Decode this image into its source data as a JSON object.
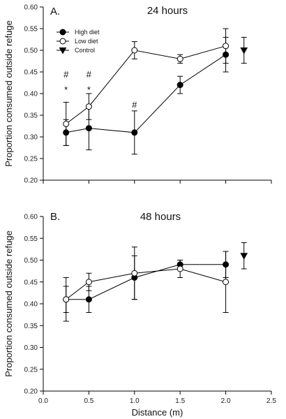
{
  "chart_data": [
    {
      "type": "line",
      "panel": "A.",
      "title": "24 hours",
      "xlabel": "",
      "ylabel": "Proportion consumed outside refuge",
      "xlim": [
        0,
        2.5
      ],
      "ylim": [
        0.2,
        0.6
      ],
      "x_ticks": [
        "0.0",
        "0.5",
        "1.0",
        "1.5",
        "2.0",
        "2.5"
      ],
      "y_ticks": [
        "0.20",
        "0.25",
        "0.30",
        "0.35",
        "0.40",
        "0.45",
        "0.50",
        "0.55",
        "0.60"
      ],
      "show_x_tick_labels": false,
      "legend_placement": "top-left",
      "series": [
        {
          "name": "High diet",
          "marker": "filled-circle",
          "connected": true,
          "x": [
            0.25,
            0.5,
            1.0,
            1.5,
            2.0
          ],
          "y": [
            0.31,
            0.32,
            0.31,
            0.42,
            0.49
          ],
          "err": [
            0.03,
            0.05,
            0.05,
            0.02,
            0.04
          ]
        },
        {
          "name": "Low diet",
          "marker": "open-circle",
          "connected": true,
          "x": [
            0.25,
            0.5,
            1.0,
            1.5,
            2.0
          ],
          "y": [
            0.33,
            0.37,
            0.5,
            0.48,
            0.51
          ],
          "err": [
            0.05,
            0.03,
            0.02,
            0.01,
            0.04
          ]
        },
        {
          "name": "Control",
          "marker": "filled-triangle-down",
          "connected": false,
          "x": [
            2.2
          ],
          "y": [
            0.5
          ],
          "err": [
            0.03
          ]
        }
      ],
      "annotations": [
        {
          "text": "#",
          "x": 0.25,
          "y": 0.445
        },
        {
          "text": "#",
          "x": 0.5,
          "y": 0.445
        },
        {
          "text": "*",
          "x": 0.25,
          "y": 0.41
        },
        {
          "text": "*",
          "x": 0.5,
          "y": 0.41
        },
        {
          "text": "#",
          "x": 1.0,
          "y": 0.375
        }
      ]
    },
    {
      "type": "line",
      "panel": "B.",
      "title": "48 hours",
      "xlabel": "Distance (m)",
      "ylabel": "Proportion consumed outside refuge",
      "xlim": [
        0,
        2.5
      ],
      "ylim": [
        0.2,
        0.6
      ],
      "x_ticks": [
        "0.0",
        "0.5",
        "1.0",
        "1.5",
        "2.0",
        "2.5"
      ],
      "y_ticks": [
        "0.20",
        "0.25",
        "0.30",
        "0.35",
        "0.40",
        "0.45",
        "0.50",
        "0.55",
        "0.60"
      ],
      "show_x_tick_labels": true,
      "series": [
        {
          "name": "High diet",
          "marker": "filled-circle",
          "connected": true,
          "x": [
            0.25,
            0.5,
            1.0,
            1.5,
            2.0
          ],
          "y": [
            0.41,
            0.41,
            0.46,
            0.49,
            0.49
          ],
          "err": [
            0.03,
            0.03,
            0.05,
            0.01,
            0.03
          ]
        },
        {
          "name": "Low diet",
          "marker": "open-circle",
          "connected": true,
          "x": [
            0.25,
            0.5,
            1.0,
            1.5,
            2.0
          ],
          "y": [
            0.41,
            0.45,
            0.47,
            0.48,
            0.45
          ],
          "err": [
            0.05,
            0.02,
            0.06,
            0.02,
            0.07
          ]
        },
        {
          "name": "Control",
          "marker": "filled-triangle-down",
          "connected": false,
          "x": [
            2.2
          ],
          "y": [
            0.51
          ],
          "err": [
            0.03
          ]
        }
      ],
      "annotations": []
    }
  ]
}
